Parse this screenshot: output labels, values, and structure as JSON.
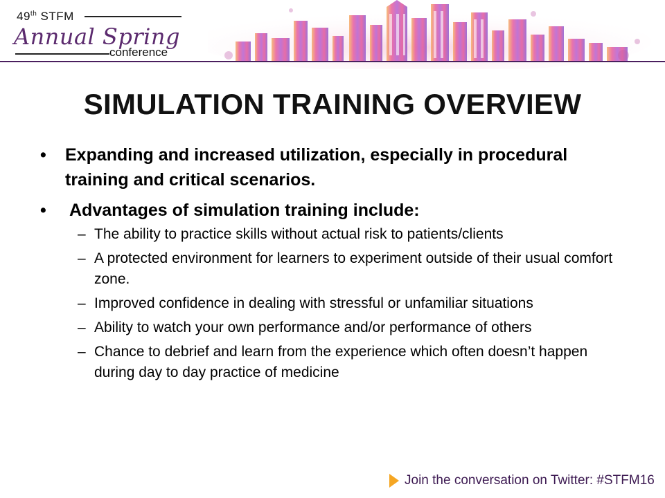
{
  "header": {
    "edition": "49",
    "edition_suffix": "th",
    "org": " STFM",
    "name": "Annual Spring",
    "subtitle": "conference"
  },
  "slide": {
    "title": "SIMULATION TRAINING OVERVIEW",
    "bullets": [
      "Expanding and increased utilization, especially in procedural training and critical scenarios.",
      "Advantages of simulation training include:"
    ],
    "subbullets": [
      "The ability to practice skills without actual risk to patients/clients",
      "A protected environment for learners to experiment outside of their usual comfort zone.",
      "Improved confidence in dealing with stressful or unfamiliar situations",
      "Ability to watch your own performance and/or performance of others",
      "Chance to debrief and learn from the experience which often doesn’t happen during day to day practice of medicine"
    ],
    "bullet_symbol": "•",
    "dash_symbol": "–"
  },
  "footer": {
    "text": "Join the conversation on Twitter: #STFM16"
  },
  "colors": {
    "brand_purple": "#4a1f5e",
    "accent_orange": "#f5a623"
  }
}
